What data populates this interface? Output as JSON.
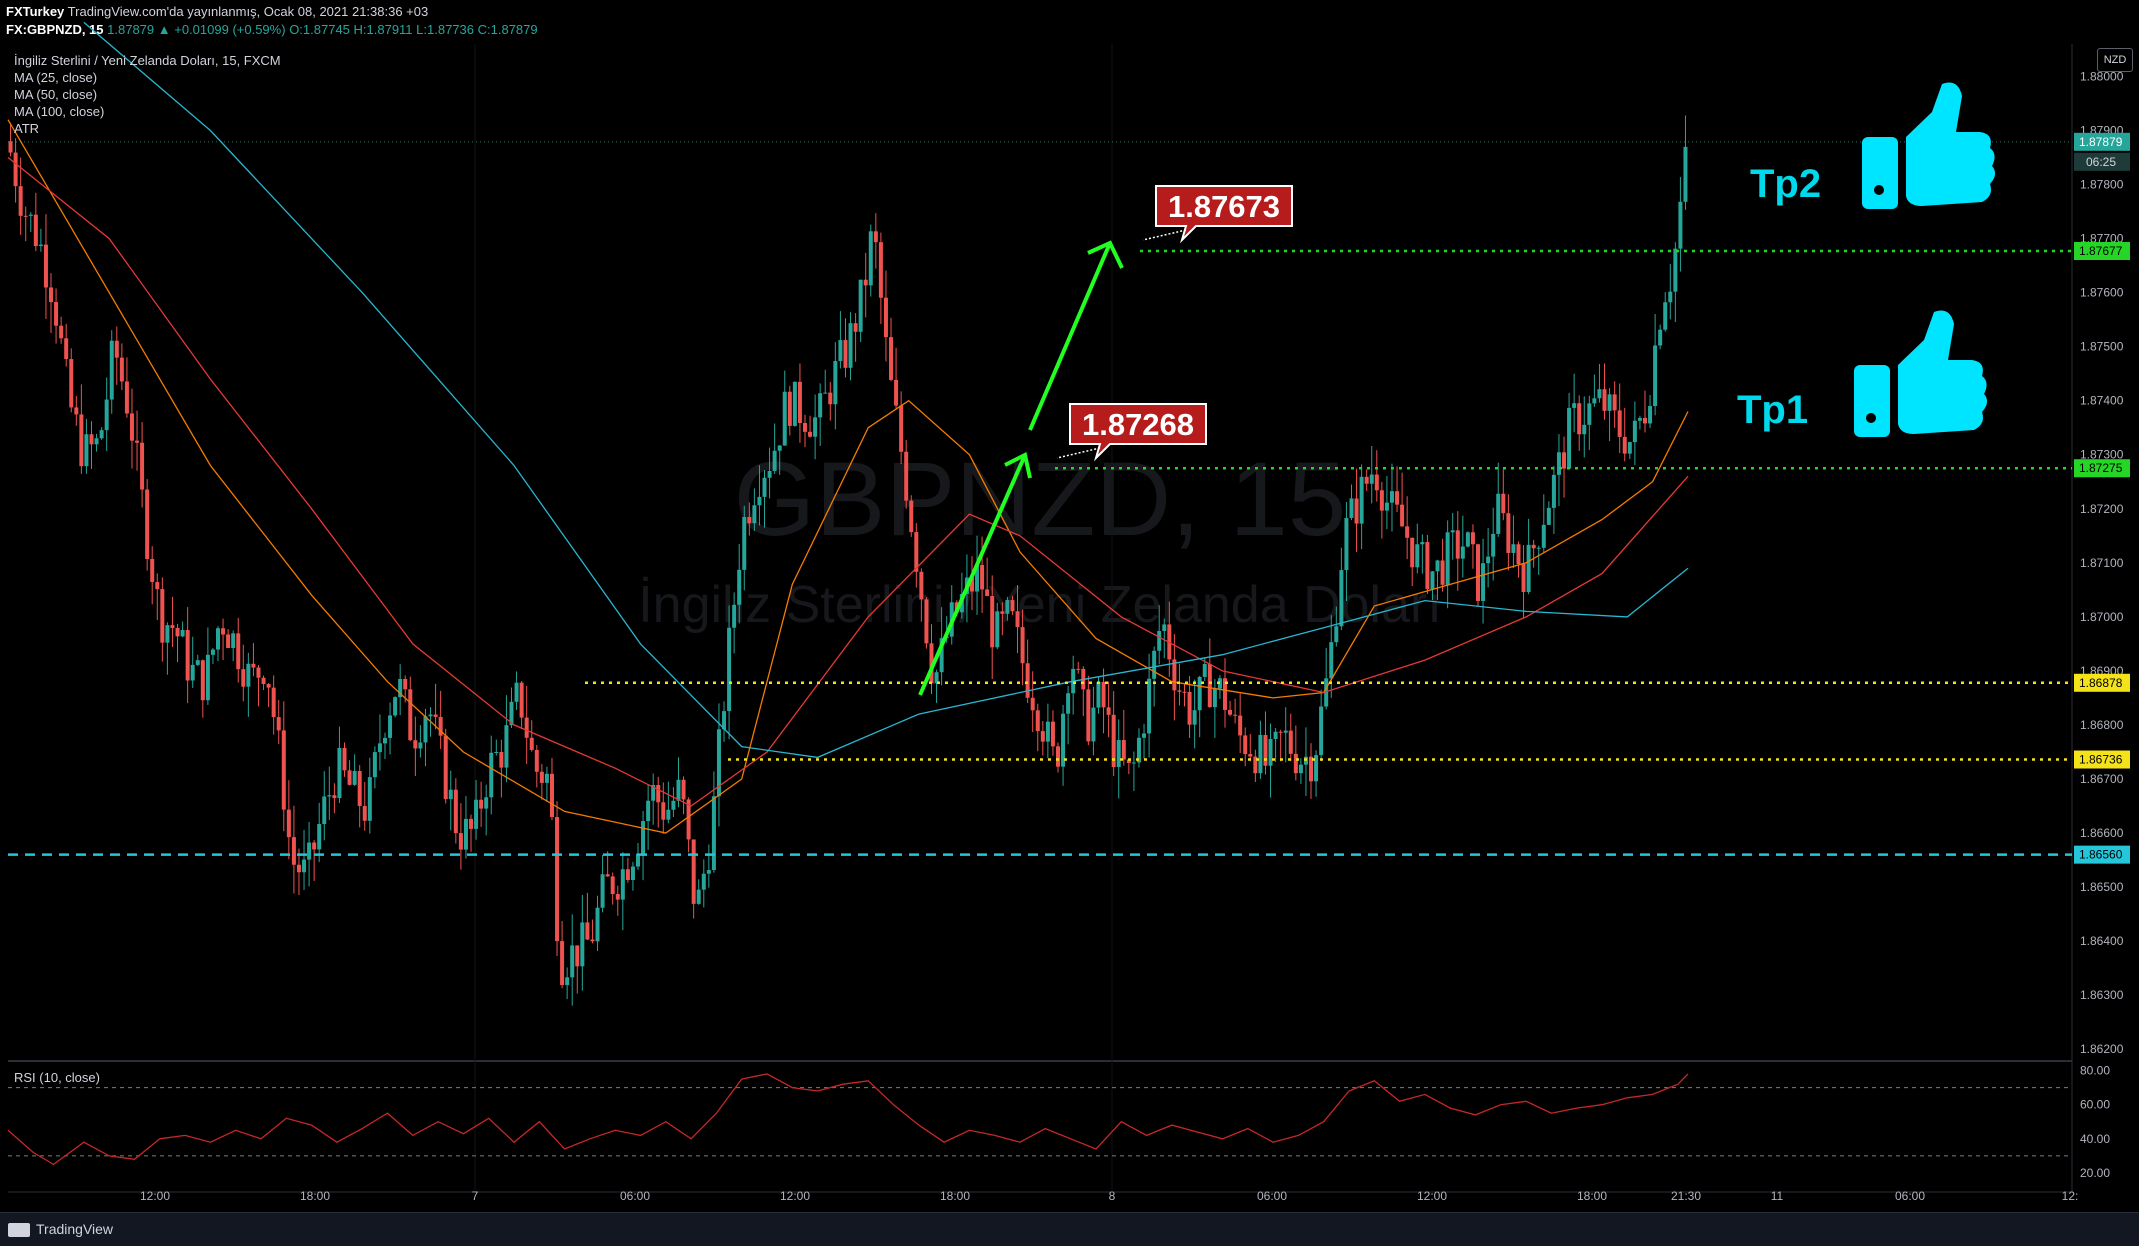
{
  "header": {
    "publisher": "FXTurkey",
    "published_text": "TradingView.com'da yayınlanmış, Ocak 08, 2021 21:38:36 +03",
    "symbol": "FX:GBPNZD, 15",
    "last": "1.87879",
    "change": "▲ +0.01099 (+0.59%)",
    "ohlc": "O:1.87745 H:1.87911 L:1.87736 C:1.87879"
  },
  "legend": {
    "title": "İngiliz Sterlini / Yeni Zelanda Doları, 15, FXCM",
    "ma25": "MA (25, close)",
    "ma50": "MA (50, close)",
    "ma100": "MA (100, close)",
    "atr": "ATR"
  },
  "watermark": {
    "symbol": "GBPNZD, 15",
    "name": "İngiliz Sterlini / Yeni Zelanda Doları"
  },
  "rsi_label": "RSI (10, close)",
  "currency": "NZD",
  "countdown": "06:25",
  "footer": {
    "brand": "TradingView"
  },
  "annotations": {
    "tp1": "Tp1",
    "tp2": "Tp2",
    "target1": "1.87268",
    "target2": "1.87673"
  },
  "colors": {
    "up": "#26a69a",
    "down": "#ef5350",
    "ma25": "#f57c00",
    "ma50": "#e53935",
    "ma100": "#29b6d0",
    "green_level": "#26d626",
    "yellow_level": "#f5e31a",
    "cyan_level": "#26c6da",
    "label_red": "#b71c1c",
    "thumb": "#00e5ff",
    "arrow": "#22ff22"
  },
  "chart_data": {
    "type": "candlestick",
    "title": "İngiliz Sterlini / Yeni Zelanda Doları, 15, FXCM",
    "yaxis_ticks": [
      "1.88000",
      "1.87900",
      "1.87800",
      "1.87700",
      "1.87600",
      "1.87500",
      "1.87400",
      "1.87300",
      "1.87200",
      "1.87100",
      "1.87000",
      "1.86900",
      "1.86800",
      "1.86700",
      "1.86600",
      "1.86500",
      "1.86400",
      "1.86300",
      "1.86200"
    ],
    "ylim": [
      1.8618,
      1.8806
    ],
    "xaxis_ticks": [
      "12:00",
      "18:00",
      "7",
      "06:00",
      "12:00",
      "18:00",
      "8",
      "06:00",
      "12:00",
      "18:00",
      "21:30",
      "11",
      "06:00",
      "12:"
    ],
    "levels": [
      {
        "price": 1.87677,
        "label": "1.87677",
        "style": "dotted",
        "color": "green"
      },
      {
        "price": 1.87275,
        "label": "1.87275",
        "style": "dotted",
        "color": "green"
      },
      {
        "price": 1.86878,
        "label": "1.86878",
        "style": "dotted",
        "color": "yellow"
      },
      {
        "price": 1.86736,
        "label": "1.86736",
        "style": "dotted",
        "color": "yellow"
      },
      {
        "price": 1.8656,
        "label": "1.86560",
        "style": "dashed",
        "color": "cyan"
      }
    ],
    "last_price": {
      "value": 1.87879,
      "label": "1.87879"
    },
    "close_path": [
      [
        0,
        1.8788
      ],
      [
        6,
        1.8776
      ],
      [
        12,
        1.877
      ],
      [
        18,
        1.876
      ],
      [
        24,
        1.874
      ],
      [
        30,
        1.873
      ],
      [
        36,
        1.8732
      ],
      [
        42,
        1.875
      ],
      [
        48,
        1.8738
      ],
      [
        54,
        1.8718
      ],
      [
        60,
        1.87
      ],
      [
        66,
        1.8698
      ],
      [
        72,
        1.869
      ],
      [
        78,
        1.8688
      ],
      [
        84,
        1.87
      ],
      [
        90,
        1.8695
      ],
      [
        96,
        1.8688
      ],
      [
        102,
        1.8692
      ],
      [
        108,
        1.8672
      ],
      [
        112,
        1.8655
      ],
      [
        118,
        1.8652
      ],
      [
        124,
        1.8663
      ],
      [
        130,
        1.8672
      ],
      [
        136,
        1.8668
      ],
      [
        142,
        1.8664
      ],
      [
        148,
        1.868
      ],
      [
        154,
        1.8688
      ],
      [
        160,
        1.8678
      ],
      [
        166,
        1.8684
      ],
      [
        172,
        1.8672
      ],
      [
        178,
        1.866
      ],
      [
        184,
        1.866
      ],
      [
        190,
        1.8672
      ],
      [
        196,
        1.8676
      ],
      [
        202,
        1.8686
      ],
      [
        208,
        1.8672
      ],
      [
        214,
        1.867
      ],
      [
        218,
        1.8636
      ],
      [
        224,
        1.8638
      ],
      [
        230,
        1.864
      ],
      [
        236,
        1.865
      ],
      [
        242,
        1.8652
      ],
      [
        248,
        1.8658
      ],
      [
        254,
        1.8668
      ],
      [
        260,
        1.8664
      ],
      [
        266,
        1.8668
      ],
      [
        272,
        1.8645
      ],
      [
        278,
        1.866
      ],
      [
        284,
        1.869
      ],
      [
        290,
        1.8716
      ],
      [
        296,
        1.8726
      ],
      [
        302,
        1.873
      ],
      [
        308,
        1.874
      ],
      [
        314,
        1.8738
      ],
      [
        320,
        1.8736
      ],
      [
        326,
        1.8744
      ],
      [
        332,
        1.875
      ],
      [
        338,
        1.876
      ],
      [
        342,
        1.8772
      ],
      [
        348,
        1.8745
      ],
      [
        354,
        1.8728
      ],
      [
        360,
        1.8708
      ],
      [
        366,
        1.8688
      ],
      [
        372,
        1.8698
      ],
      [
        378,
        1.8704
      ],
      [
        384,
        1.8708
      ],
      [
        390,
        1.8696
      ],
      [
        396,
        1.87
      ],
      [
        402,
        1.869
      ],
      [
        408,
        1.8682
      ],
      [
        414,
        1.8672
      ],
      [
        420,
        1.8694
      ],
      [
        426,
        1.868
      ],
      [
        432,
        1.8685
      ],
      [
        438,
        1.8674
      ],
      [
        444,
        1.867
      ],
      [
        450,
        1.8684
      ],
      [
        456,
        1.87
      ],
      [
        462,
        1.8688
      ],
      [
        468,
        1.8682
      ],
      [
        474,
        1.8688
      ],
      [
        480,
        1.8686
      ],
      [
        486,
        1.8678
      ],
      [
        492,
        1.8676
      ],
      [
        498,
        1.8672
      ],
      [
        504,
        1.8678
      ],
      [
        510,
        1.8674
      ],
      [
        516,
        1.8674
      ],
      [
        522,
        1.869
      ],
      [
        528,
        1.8715
      ],
      [
        534,
        1.8722
      ],
      [
        540,
        1.8728
      ],
      [
        546,
        1.872
      ],
      [
        552,
        1.8716
      ],
      [
        558,
        1.871
      ],
      [
        564,
        1.8708
      ],
      [
        570,
        1.8712
      ],
      [
        576,
        1.8714
      ],
      [
        582,
        1.8705
      ],
      [
        588,
        1.872
      ],
      [
        594,
        1.8714
      ],
      [
        600,
        1.8708
      ],
      [
        606,
        1.8718
      ],
      [
        612,
        1.8726
      ],
      [
        618,
        1.8736
      ],
      [
        624,
        1.8738
      ],
      [
        630,
        1.874
      ],
      [
        636,
        1.8735
      ],
      [
        642,
        1.8732
      ],
      [
        648,
        1.874
      ],
      [
        654,
        1.876
      ],
      [
        658,
        1.8764
      ],
      [
        664,
        1.8788
      ]
    ],
    "series": [
      {
        "name": "MA (25, close)",
        "values": [
          [
            0,
            1.8792
          ],
          [
            40,
            1.876
          ],
          [
            80,
            1.8728
          ],
          [
            120,
            1.8704
          ],
          [
            150,
            1.8688
          ],
          [
            180,
            1.8675
          ],
          [
            220,
            1.8664
          ],
          [
            260,
            1.866
          ],
          [
            290,
            1.867
          ],
          [
            310,
            1.8706
          ],
          [
            340,
            1.8735
          ],
          [
            356,
            1.874
          ],
          [
            380,
            1.873
          ],
          [
            400,
            1.8712
          ],
          [
            430,
            1.8696
          ],
          [
            460,
            1.8688
          ],
          [
            500,
            1.8685
          ],
          [
            520,
            1.8686
          ],
          [
            540,
            1.8702
          ],
          [
            570,
            1.8706
          ],
          [
            600,
            1.871
          ],
          [
            630,
            1.8718
          ],
          [
            650,
            1.8725
          ],
          [
            664,
            1.8738
          ]
        ]
      },
      {
        "name": "MA (50, close)",
        "values": [
          [
            0,
            1.8785
          ],
          [
            40,
            1.877
          ],
          [
            80,
            1.8744
          ],
          [
            120,
            1.872
          ],
          [
            160,
            1.8695
          ],
          [
            200,
            1.868
          ],
          [
            240,
            1.8672
          ],
          [
            270,
            1.8665
          ],
          [
            300,
            1.8675
          ],
          [
            340,
            1.87
          ],
          [
            380,
            1.8719
          ],
          [
            400,
            1.8715
          ],
          [
            440,
            1.87
          ],
          [
            480,
            1.869
          ],
          [
            520,
            1.8686
          ],
          [
            560,
            1.8692
          ],
          [
            600,
            1.87
          ],
          [
            630,
            1.8708
          ],
          [
            664,
            1.8726
          ]
        ]
      },
      {
        "name": "MA (100, close)",
        "values": [
          [
            30,
            1.881
          ],
          [
            80,
            1.879
          ],
          [
            140,
            1.876
          ],
          [
            200,
            1.8728
          ],
          [
            250,
            1.8695
          ],
          [
            290,
            1.8676
          ],
          [
            320,
            1.8674
          ],
          [
            360,
            1.8682
          ],
          [
            420,
            1.8688
          ],
          [
            480,
            1.8693
          ],
          [
            520,
            1.8698
          ],
          [
            560,
            1.8703
          ],
          [
            600,
            1.8701
          ],
          [
            640,
            1.87
          ],
          [
            664,
            1.8709
          ]
        ]
      }
    ],
    "rsi": {
      "ylim": [
        10,
        85
      ],
      "ticks": [
        "80.00",
        "60.00",
        "40.00",
        "20.00"
      ],
      "levels": [
        70,
        30
      ],
      "values": [
        [
          0,
          45
        ],
        [
          10,
          32
        ],
        [
          18,
          25
        ],
        [
          30,
          38
        ],
        [
          40,
          30
        ],
        [
          50,
          28
        ],
        [
          60,
          40
        ],
        [
          70,
          42
        ],
        [
          80,
          38
        ],
        [
          90,
          45
        ],
        [
          100,
          40
        ],
        [
          110,
          52
        ],
        [
          120,
          48
        ],
        [
          130,
          38
        ],
        [
          140,
          46
        ],
        [
          150,
          55
        ],
        [
          160,
          42
        ],
        [
          170,
          50
        ],
        [
          180,
          43
        ],
        [
          190,
          52
        ],
        [
          200,
          38
        ],
        [
          210,
          50
        ],
        [
          220,
          34
        ],
        [
          230,
          40
        ],
        [
          240,
          45
        ],
        [
          250,
          42
        ],
        [
          260,
          50
        ],
        [
          270,
          40
        ],
        [
          280,
          55
        ],
        [
          290,
          75
        ],
        [
          300,
          78
        ],
        [
          310,
          70
        ],
        [
          320,
          68
        ],
        [
          330,
          72
        ],
        [
          340,
          74
        ],
        [
          350,
          60
        ],
        [
          360,
          48
        ],
        [
          370,
          38
        ],
        [
          380,
          45
        ],
        [
          390,
          42
        ],
        [
          400,
          38
        ],
        [
          410,
          46
        ],
        [
          420,
          40
        ],
        [
          430,
          34
        ],
        [
          440,
          50
        ],
        [
          450,
          42
        ],
        [
          460,
          48
        ],
        [
          470,
          44
        ],
        [
          480,
          40
        ],
        [
          490,
          46
        ],
        [
          500,
          38
        ],
        [
          510,
          42
        ],
        [
          520,
          50
        ],
        [
          530,
          68
        ],
        [
          540,
          74
        ],
        [
          550,
          62
        ],
        [
          560,
          66
        ],
        [
          570,
          58
        ],
        [
          580,
          54
        ],
        [
          590,
          60
        ],
        [
          600,
          62
        ],
        [
          610,
          55
        ],
        [
          620,
          58
        ],
        [
          630,
          60
        ],
        [
          640,
          64
        ],
        [
          650,
          66
        ],
        [
          660,
          72
        ],
        [
          664,
          78
        ]
      ]
    }
  }
}
